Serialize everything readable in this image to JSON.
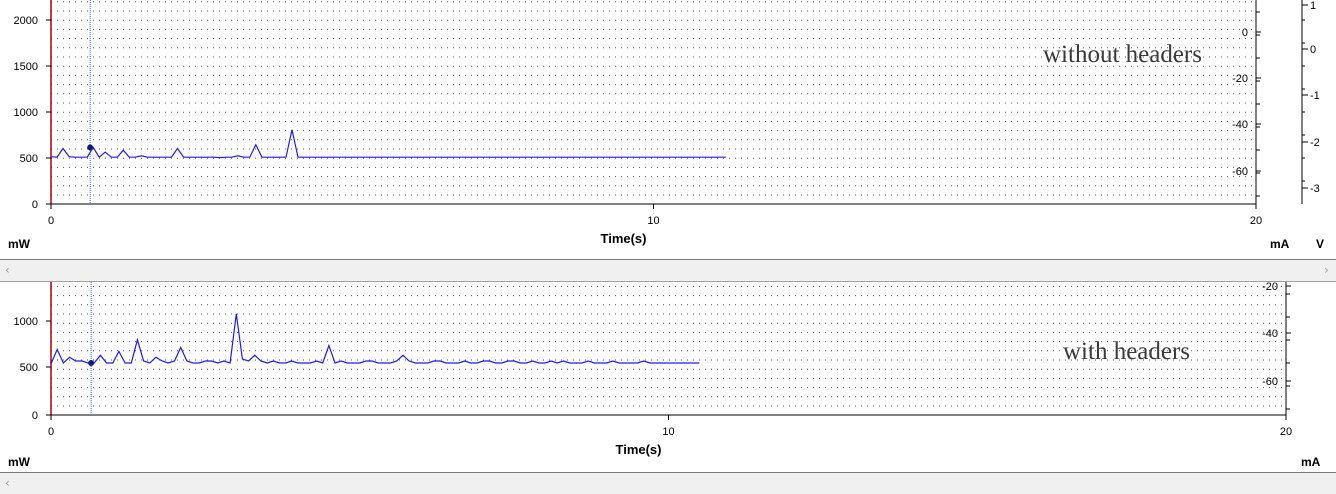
{
  "chart_data": [
    {
      "type": "line",
      "annotation": "without headers",
      "xlabel": "Time(s)",
      "x_ticks": [
        "0",
        "10",
        "20"
      ],
      "xlim": [
        0,
        20
      ],
      "y_left_unit": "mW",
      "y_left_ticks": [
        "0",
        "500",
        "1000",
        "1500",
        "2000"
      ],
      "ylim_left": [
        0,
        2200
      ],
      "y_mid_unit": "mA",
      "y_mid_ticks": [
        "0",
        "-20",
        "-40",
        "-60"
      ],
      "y_right_unit": "V",
      "y_right_ticks": [
        "1",
        "0",
        "-1",
        "-2",
        "-3"
      ],
      "cursor_time": 0.65,
      "series": [
        {
          "color": "#1a1aff",
          "x": [
            0,
            0.1,
            0.2,
            0.3,
            0.4,
            0.5,
            0.6,
            0.7,
            0.8,
            0.9,
            1.0,
            1.1,
            1.2,
            1.3,
            1.4,
            1.5,
            1.6,
            1.7,
            1.8,
            1.9,
            2.0,
            2.1,
            2.2,
            2.3,
            2.4,
            2.5,
            2.6,
            2.7,
            2.8,
            2.9,
            3.0,
            3.1,
            3.2,
            3.3,
            3.4,
            3.5,
            3.6,
            3.7,
            3.8,
            3.9,
            4.0,
            4.1,
            4.2,
            4.3,
            4.4,
            4.5,
            4.6,
            4.7,
            4.8,
            4.9,
            5.0,
            5.1,
            5.2,
            5.3,
            5.4,
            5.5,
            5.6,
            5.7,
            5.8,
            5.9,
            6.0,
            6.1,
            6.2,
            6.3,
            6.4,
            6.5,
            6.6,
            6.7,
            6.8,
            6.9,
            7.0,
            7.1,
            7.2,
            7.3,
            7.4,
            7.5,
            7.6,
            7.7,
            7.8,
            7.9,
            8.0,
            8.1,
            8.2,
            8.3,
            8.4,
            8.5,
            8.6,
            8.7,
            8.8,
            8.9,
            9.0,
            9.1,
            9.2,
            9.3,
            9.4,
            9.5,
            9.6,
            9.7,
            9.8,
            9.9,
            10.0,
            10.1,
            10.2,
            10.3,
            10.4,
            10.5,
            10.6,
            10.7,
            10.8,
            10.9,
            11.0,
            11.1,
            11.2
          ],
          "values": [
            510,
            505,
            600,
            510,
            505,
            505,
            505,
            610,
            505,
            560,
            505,
            505,
            580,
            505,
            505,
            520,
            505,
            505,
            505,
            505,
            505,
            600,
            505,
            505,
            505,
            505,
            505,
            505,
            500,
            505,
            505,
            520,
            505,
            505,
            640,
            505,
            505,
            505,
            505,
            505,
            800,
            505,
            505,
            505,
            505,
            505,
            505,
            505,
            505,
            505,
            505,
            505,
            505,
            505,
            505,
            505,
            505,
            505,
            505,
            505,
            505,
            505,
            505,
            505,
            505,
            505,
            505,
            505,
            505,
            505,
            505,
            505,
            505,
            505,
            505,
            505,
            505,
            505,
            505,
            505,
            505,
            505,
            505,
            505,
            505,
            505,
            505,
            505,
            505,
            505,
            505,
            505,
            505,
            505,
            505,
            505,
            505,
            505,
            505,
            505,
            505,
            505,
            505,
            505,
            505,
            505,
            505,
            505,
            505,
            505,
            505,
            505,
            505
          ]
        }
      ]
    },
    {
      "type": "line",
      "annotation": "with headers",
      "xlabel": "Time(s)",
      "x_ticks": [
        "0",
        "10",
        "20"
      ],
      "xlim": [
        0,
        20
      ],
      "y_left_unit": "mW",
      "y_left_ticks": [
        "0",
        "500",
        "1000"
      ],
      "ylim_left": [
        0,
        1380
      ],
      "y_mid_unit": "mA",
      "y_mid_ticks": [
        "-20",
        "-40",
        "-60"
      ],
      "cursor_time": 0.65,
      "series": [
        {
          "color": "#1a1aff",
          "x": [
            0,
            0.1,
            0.2,
            0.3,
            0.4,
            0.5,
            0.6,
            0.7,
            0.8,
            0.9,
            1.0,
            1.1,
            1.2,
            1.3,
            1.4,
            1.5,
            1.6,
            1.7,
            1.8,
            1.9,
            2.0,
            2.1,
            2.2,
            2.3,
            2.4,
            2.5,
            2.6,
            2.7,
            2.8,
            2.9,
            3.0,
            3.1,
            3.2,
            3.3,
            3.4,
            3.5,
            3.6,
            3.7,
            3.8,
            3.9,
            4.0,
            4.1,
            4.2,
            4.3,
            4.4,
            4.5,
            4.6,
            4.7,
            4.8,
            4.9,
            5.0,
            5.1,
            5.2,
            5.3,
            5.4,
            5.5,
            5.6,
            5.7,
            5.8,
            5.9,
            6.0,
            6.1,
            6.2,
            6.3,
            6.4,
            6.5,
            6.6,
            6.7,
            6.8,
            6.9,
            7.0,
            7.1,
            7.2,
            7.3,
            7.4,
            7.5,
            7.6,
            7.7,
            7.8,
            7.9,
            8.0,
            8.1,
            8.2,
            8.3,
            8.4,
            8.5,
            8.6,
            8.7,
            8.8,
            8.9,
            9.0,
            9.1,
            9.2,
            9.3,
            9.4,
            9.5,
            9.6,
            9.7,
            9.8,
            9.9,
            10.0,
            10.1,
            10.2,
            10.3,
            10.4,
            10.5
          ],
          "values": [
            530,
            680,
            540,
            600,
            560,
            560,
            540,
            540,
            620,
            540,
            540,
            660,
            540,
            540,
            780,
            560,
            540,
            600,
            560,
            540,
            560,
            700,
            560,
            540,
            540,
            560,
            560,
            540,
            560,
            540,
            1050,
            580,
            560,
            620,
            560,
            540,
            560,
            540,
            540,
            560,
            540,
            540,
            540,
            560,
            540,
            720,
            540,
            560,
            540,
            540,
            540,
            560,
            560,
            540,
            540,
            540,
            560,
            620,
            560,
            540,
            540,
            540,
            560,
            560,
            540,
            540,
            540,
            560,
            540,
            540,
            560,
            560,
            540,
            540,
            560,
            560,
            540,
            540,
            560,
            540,
            540,
            560,
            540,
            560,
            540,
            540,
            540,
            560,
            540,
            540,
            540,
            560,
            540,
            540,
            540,
            540,
            560,
            540,
            540,
            540,
            540,
            540,
            540,
            540,
            540,
            540
          ]
        }
      ]
    }
  ]
}
